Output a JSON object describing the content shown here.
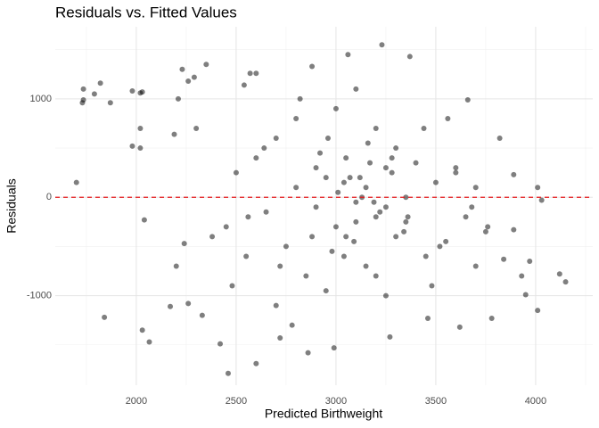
{
  "chart_data": {
    "type": "scatter",
    "title": "Residuals vs. Fitted Values",
    "x_label": "Predicted Birthweight",
    "y_label": "Residuals",
    "xlim": [
      1594,
      4286
    ],
    "ylim": [
      -1910,
      1733
    ],
    "xticks": [
      2000,
      2500,
      3000,
      3500,
      4000
    ],
    "yticks": [
      -1000,
      0,
      1000
    ],
    "x_minor_grid": [
      1750,
      2250,
      2750,
      3250,
      3750,
      4250
    ],
    "y_minor_grid": [
      -1500,
      -500,
      500,
      1500
    ],
    "grid": true,
    "color": "#000000",
    "opacity": 0.5,
    "hline": 0,
    "hline_color": "#e41a1c",
    "x": [
      1700,
      1735,
      1730,
      1735,
      1790,
      1820,
      1840,
      1870,
      1980,
      1980,
      2020,
      2020,
      2020,
      2040,
      2030,
      2065,
      2030,
      2170,
      2190,
      2210,
      2230,
      2260,
      2290,
      2350,
      2200,
      2240,
      2260,
      2330,
      2420,
      2460,
      2600,
      2540,
      2570,
      2600,
      2880,
      3060,
      3230,
      3370,
      3660,
      3890,
      3890,
      3950,
      3970,
      4010,
      4030,
      4010,
      4120,
      4150,
      3780,
      3840,
      3930,
      3620,
      2860,
      2990,
      2780,
      2720,
      3270,
      3460,
      2450,
      2500,
      2550,
      2600,
      2650,
      2700,
      2750,
      2800,
      2850,
      2900,
      2950,
      3000,
      3050,
      3100,
      3150,
      3200,
      3250,
      3300,
      3350,
      3400,
      3450,
      3500,
      3550,
      3600,
      3650,
      3700,
      3750,
      2480,
      2560,
      2640,
      2720,
      2800,
      2880,
      2960,
      3040,
      3120,
      3200,
      3280,
      3360,
      3440,
      3520,
      3600,
      3680,
      3760,
      2900,
      2950,
      3000,
      3050,
      3100,
      3150,
      3200,
      3250,
      3300,
      3350,
      2920,
      2980,
      3040,
      3100,
      3160,
      3220,
      3280,
      3340,
      3010,
      3090,
      3170,
      3250,
      3130,
      3070,
      3190,
      2300,
      2380,
      2700,
      2820,
      3480,
      3560,
      3700,
      3820
    ],
    "values": [
      150,
      1100,
      960,
      990,
      1050,
      1160,
      -1220,
      960,
      1080,
      520,
      700,
      500,
      1060,
      -230,
      -1350,
      -1470,
      1070,
      -1110,
      640,
      1000,
      1300,
      1180,
      1220,
      1350,
      -700,
      -470,
      -1080,
      -1200,
      -1490,
      -1790,
      -1690,
      1140,
      1260,
      1260,
      1330,
      1450,
      1550,
      1430,
      990,
      230,
      -330,
      -990,
      -650,
      100,
      -30,
      -1150,
      -780,
      -860,
      -1230,
      -630,
      -800,
      -1320,
      -1580,
      -1530,
      -1300,
      -1430,
      -1420,
      -1230,
      -300,
      250,
      -600,
      400,
      -150,
      600,
      -500,
      800,
      -800,
      300,
      -950,
      900,
      -400,
      1100,
      -700,
      700,
      -1000,
      500,
      -250,
      350,
      -600,
      150,
      -450,
      250,
      -200,
      100,
      -350,
      -900,
      -200,
      500,
      -700,
      100,
      -400,
      600,
      -600,
      200,
      -800,
      400,
      -200,
      700,
      -500,
      300,
      -100,
      -300,
      -100,
      200,
      -300,
      400,
      -50,
      100,
      -200,
      300,
      -400,
      0,
      450,
      -550,
      150,
      -250,
      550,
      -150,
      250,
      -350,
      50,
      -450,
      350,
      -100,
      0,
      200,
      -50,
      700,
      -400,
      -1100,
      1000,
      -900,
      800,
      -700,
      600
    ]
  }
}
